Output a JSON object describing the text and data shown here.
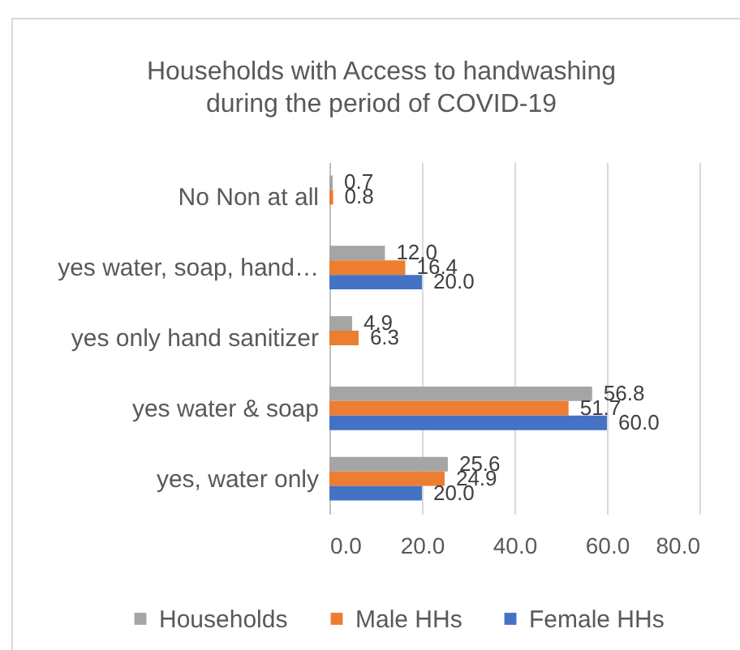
{
  "chart_data": {
    "type": "bar",
    "orientation": "horizontal",
    "title": "Households with Access to handwashing\nduring the period of COVID-19",
    "categories": [
      "No Non at all",
      "yes water, soap, hand…",
      "yes only hand sanitizer",
      "yes water & soap",
      "yes, water only"
    ],
    "series": [
      {
        "name": "Households",
        "color": "#a5a5a5",
        "values": [
          0.7,
          12.0,
          4.9,
          56.8,
          25.6
        ],
        "value_labels": [
          "0.7",
          "12.0",
          "4.9",
          "56.8",
          "25.6"
        ]
      },
      {
        "name": "Male HHs",
        "color": "#ed7d31",
        "values": [
          0.8,
          16.4,
          6.3,
          51.7,
          24.9
        ],
        "value_labels": [
          "0.8",
          "16.4",
          "6.3",
          "51.7",
          "24.9"
        ]
      },
      {
        "name": "Female HHs",
        "color": "#4472c4",
        "values": [
          null,
          20.0,
          null,
          60.0,
          20.0
        ],
        "value_labels": [
          null,
          "20.0",
          null,
          "60.0",
          "20.0"
        ]
      }
    ],
    "xlim": [
      0,
      80
    ],
    "xticks": [
      {
        "value": 0,
        "label": "0.0"
      },
      {
        "value": 20,
        "label": "20.0"
      },
      {
        "value": 40,
        "label": "40.0"
      },
      {
        "value": 60,
        "label": "60.0"
      },
      {
        "value": 80,
        "label": "80.0"
      }
    ],
    "grid": "x",
    "legend": "bottom"
  }
}
